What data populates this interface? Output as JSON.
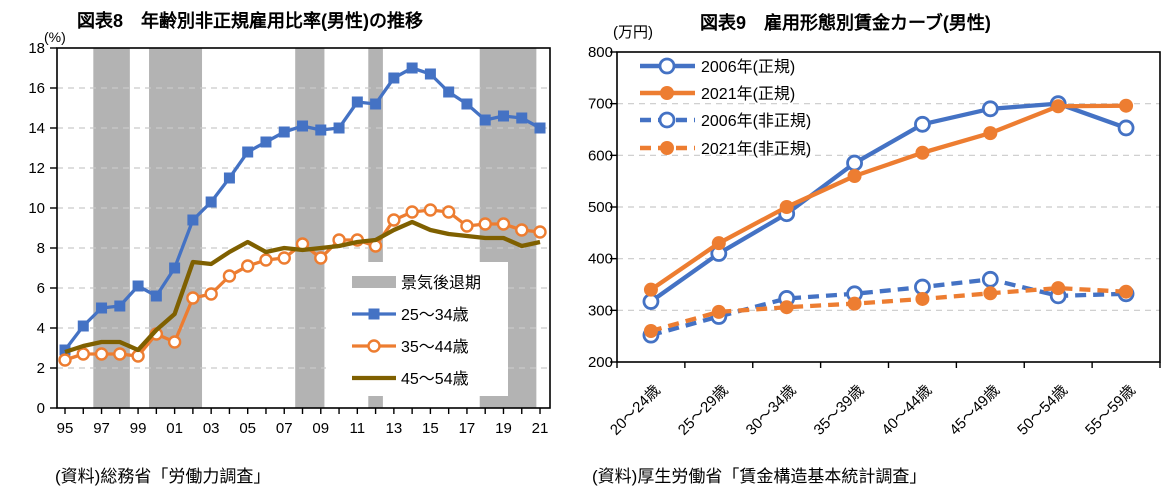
{
  "page": {
    "background": "#FFFFFF",
    "text_color": "#000000"
  },
  "chart_data": [
    {
      "type": "line",
      "kind": "year-line",
      "title": "図表8　年齢別非正規雇用比率(男性)の推移",
      "unit": "(%)",
      "source": "(資料)総務省「労働力調査」",
      "x_start_year": 1995,
      "x_end_year": 2021,
      "xtick_labels": [
        "95",
        "97",
        "99",
        "01",
        "03",
        "05",
        "07",
        "09",
        "11",
        "13",
        "15",
        "17",
        "19",
        "21"
      ],
      "ylim": [
        0,
        18
      ],
      "yticks": [
        0,
        2,
        4,
        6,
        8,
        10,
        12,
        14,
        16,
        18
      ],
      "grid": "dashed-horizontal",
      "band_color": "#B3B3B3",
      "band_legend_label": "景気後退期",
      "recession_bands": [
        [
          1996.55,
          1998.55
        ],
        [
          1999.6,
          2002.5
        ],
        [
          2007.6,
          2009.2
        ],
        [
          2011.6,
          2012.4
        ],
        [
          2017.7,
          2020.8
        ]
      ],
      "legend_position": "inside-lower-right",
      "series": [
        {
          "name": "25～34歳",
          "color": "#4472C4",
          "dash": false,
          "marker": "square",
          "values": [
            2.9,
            4.1,
            5.0,
            5.1,
            6.1,
            5.6,
            7.0,
            9.4,
            10.3,
            11.5,
            12.8,
            13.3,
            13.8,
            14.1,
            13.9,
            14.0,
            15.3,
            15.2,
            16.5,
            17.0,
            16.7,
            15.8,
            15.2,
            14.4,
            14.6,
            14.5,
            14.0
          ]
        },
        {
          "name": "35～44歳",
          "color": "#ED7D31",
          "dash": false,
          "marker": "circle-open",
          "values": [
            2.4,
            2.7,
            2.7,
            2.7,
            2.6,
            3.7,
            3.3,
            5.5,
            5.7,
            6.6,
            7.1,
            7.4,
            7.5,
            8.2,
            7.5,
            8.4,
            8.4,
            8.1,
            9.4,
            9.8,
            9.9,
            9.8,
            9.1,
            9.2,
            9.2,
            8.9,
            8.8
          ]
        },
        {
          "name": "45～54歳",
          "color": "#7F6000",
          "dash": false,
          "marker": "none",
          "values": [
            2.8,
            3.1,
            3.3,
            3.3,
            2.9,
            3.9,
            4.7,
            7.3,
            7.2,
            7.8,
            8.3,
            7.8,
            8.0,
            7.9,
            8.0,
            8.1,
            8.3,
            8.4,
            8.9,
            9.3,
            8.9,
            8.7,
            8.6,
            8.5,
            8.5,
            8.1,
            8.3
          ]
        }
      ]
    },
    {
      "type": "line",
      "kind": "category-line",
      "title": "図表9　雇用形態別賃金カーブ(男性)",
      "unit": "(万円)",
      "source": "(資料)厚生労働省「賃金構造基本統計調査」",
      "categories": [
        "20～24歳",
        "25～29歳",
        "30～34歳",
        "35～39歳",
        "40～44歳",
        "45～49歳",
        "50～54歳",
        "55～59歳"
      ],
      "ylim": [
        200,
        800
      ],
      "yticks": [
        200,
        300,
        400,
        500,
        600,
        700,
        800
      ],
      "grid": "dashed-horizontal",
      "legend_position": "inside-upper-left",
      "series": [
        {
          "name": "2006年(正規)",
          "color": "#4472C4",
          "dash": false,
          "marker": "circle-open",
          "values": [
            317,
            410,
            487,
            585,
            660,
            690,
            700,
            653
          ]
        },
        {
          "name": "2021年(正規)",
          "color": "#ED7D31",
          "dash": false,
          "marker": "circle-filled",
          "values": [
            340,
            430,
            500,
            560,
            605,
            643,
            695,
            696
          ]
        },
        {
          "name": "2006年(非正規)",
          "color": "#4472C4",
          "dash": true,
          "marker": "circle-open",
          "values": [
            252,
            288,
            323,
            332,
            345,
            360,
            328,
            332
          ]
        },
        {
          "name": "2021年(非正規)",
          "color": "#ED7D31",
          "dash": true,
          "marker": "circle-filled",
          "values": [
            260,
            297,
            306,
            313,
            322,
            333,
            343,
            336
          ]
        }
      ]
    }
  ]
}
